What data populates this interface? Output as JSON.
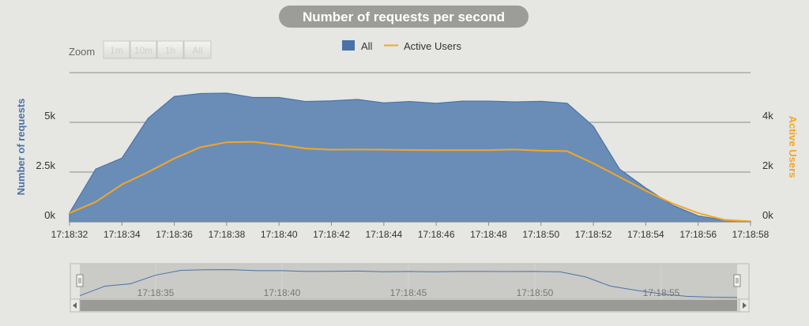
{
  "chart_data": {
    "type": "area",
    "title": "Number of requests per second",
    "zoom": {
      "label": "Zoom",
      "buttons": [
        "1m",
        "10m",
        "1h",
        "All"
      ]
    },
    "legend": {
      "placement": "top-center",
      "entries": [
        {
          "name": "All",
          "symbol": "square",
          "color": "#4a72a8"
        },
        {
          "name": "Active Users",
          "symbol": "line",
          "color": "#f5a623"
        }
      ]
    },
    "y_left": {
      "label": "Number of requests",
      "ticks": [
        "0k",
        "2.5k",
        "5k"
      ],
      "range": [
        0,
        7500
      ]
    },
    "y_right": {
      "label": "Active Users",
      "ticks": [
        "0k",
        "2k",
        "4k"
      ],
      "range": [
        0,
        6000
      ]
    },
    "x_ticks": [
      "17:18:32",
      "17:18:34",
      "17:18:36",
      "17:18:38",
      "17:18:40",
      "17:18:42",
      "17:18:44",
      "17:18:46",
      "17:18:48",
      "17:18:50",
      "17:18:52",
      "17:18:54",
      "17:18:56",
      "17:18:58"
    ],
    "x_range": [
      0,
      26
    ],
    "grid": true,
    "series": [
      {
        "name": "All",
        "type": "area",
        "axis": "left",
        "x": [
          0,
          1,
          2,
          3,
          4,
          5,
          6,
          7,
          8,
          9,
          10,
          11,
          12,
          13,
          14,
          15,
          16,
          17,
          18,
          19,
          20,
          21,
          22,
          23,
          24,
          25,
          26
        ],
        "values": [
          450,
          2650,
          3200,
          5200,
          6300,
          6450,
          6470,
          6250,
          6250,
          6050,
          6080,
          6150,
          5980,
          6050,
          5960,
          6070,
          6070,
          6030,
          6060,
          5960,
          4800,
          2650,
          1700,
          850,
          300,
          80,
          20
        ]
      },
      {
        "name": "Active Users",
        "type": "line",
        "axis": "right",
        "x": [
          0,
          1,
          2,
          3,
          4,
          5,
          6,
          7,
          8,
          9,
          10,
          11,
          12,
          13,
          14,
          15,
          16,
          17,
          18,
          19,
          20,
          21,
          22,
          23,
          24,
          25,
          26
        ],
        "values": [
          350,
          800,
          1500,
          2000,
          2550,
          3000,
          3200,
          3220,
          3100,
          2950,
          2900,
          2910,
          2900,
          2890,
          2880,
          2880,
          2880,
          2910,
          2860,
          2840,
          2350,
          1800,
          1250,
          750,
          350,
          80,
          20
        ]
      }
    ],
    "navigator": {
      "ticks": [
        "17:18:35",
        "17:18:40",
        "17:18:45",
        "17:18:50",
        "17:18:55"
      ],
      "tick_x": [
        3,
        8,
        13,
        18,
        23
      ]
    }
  }
}
